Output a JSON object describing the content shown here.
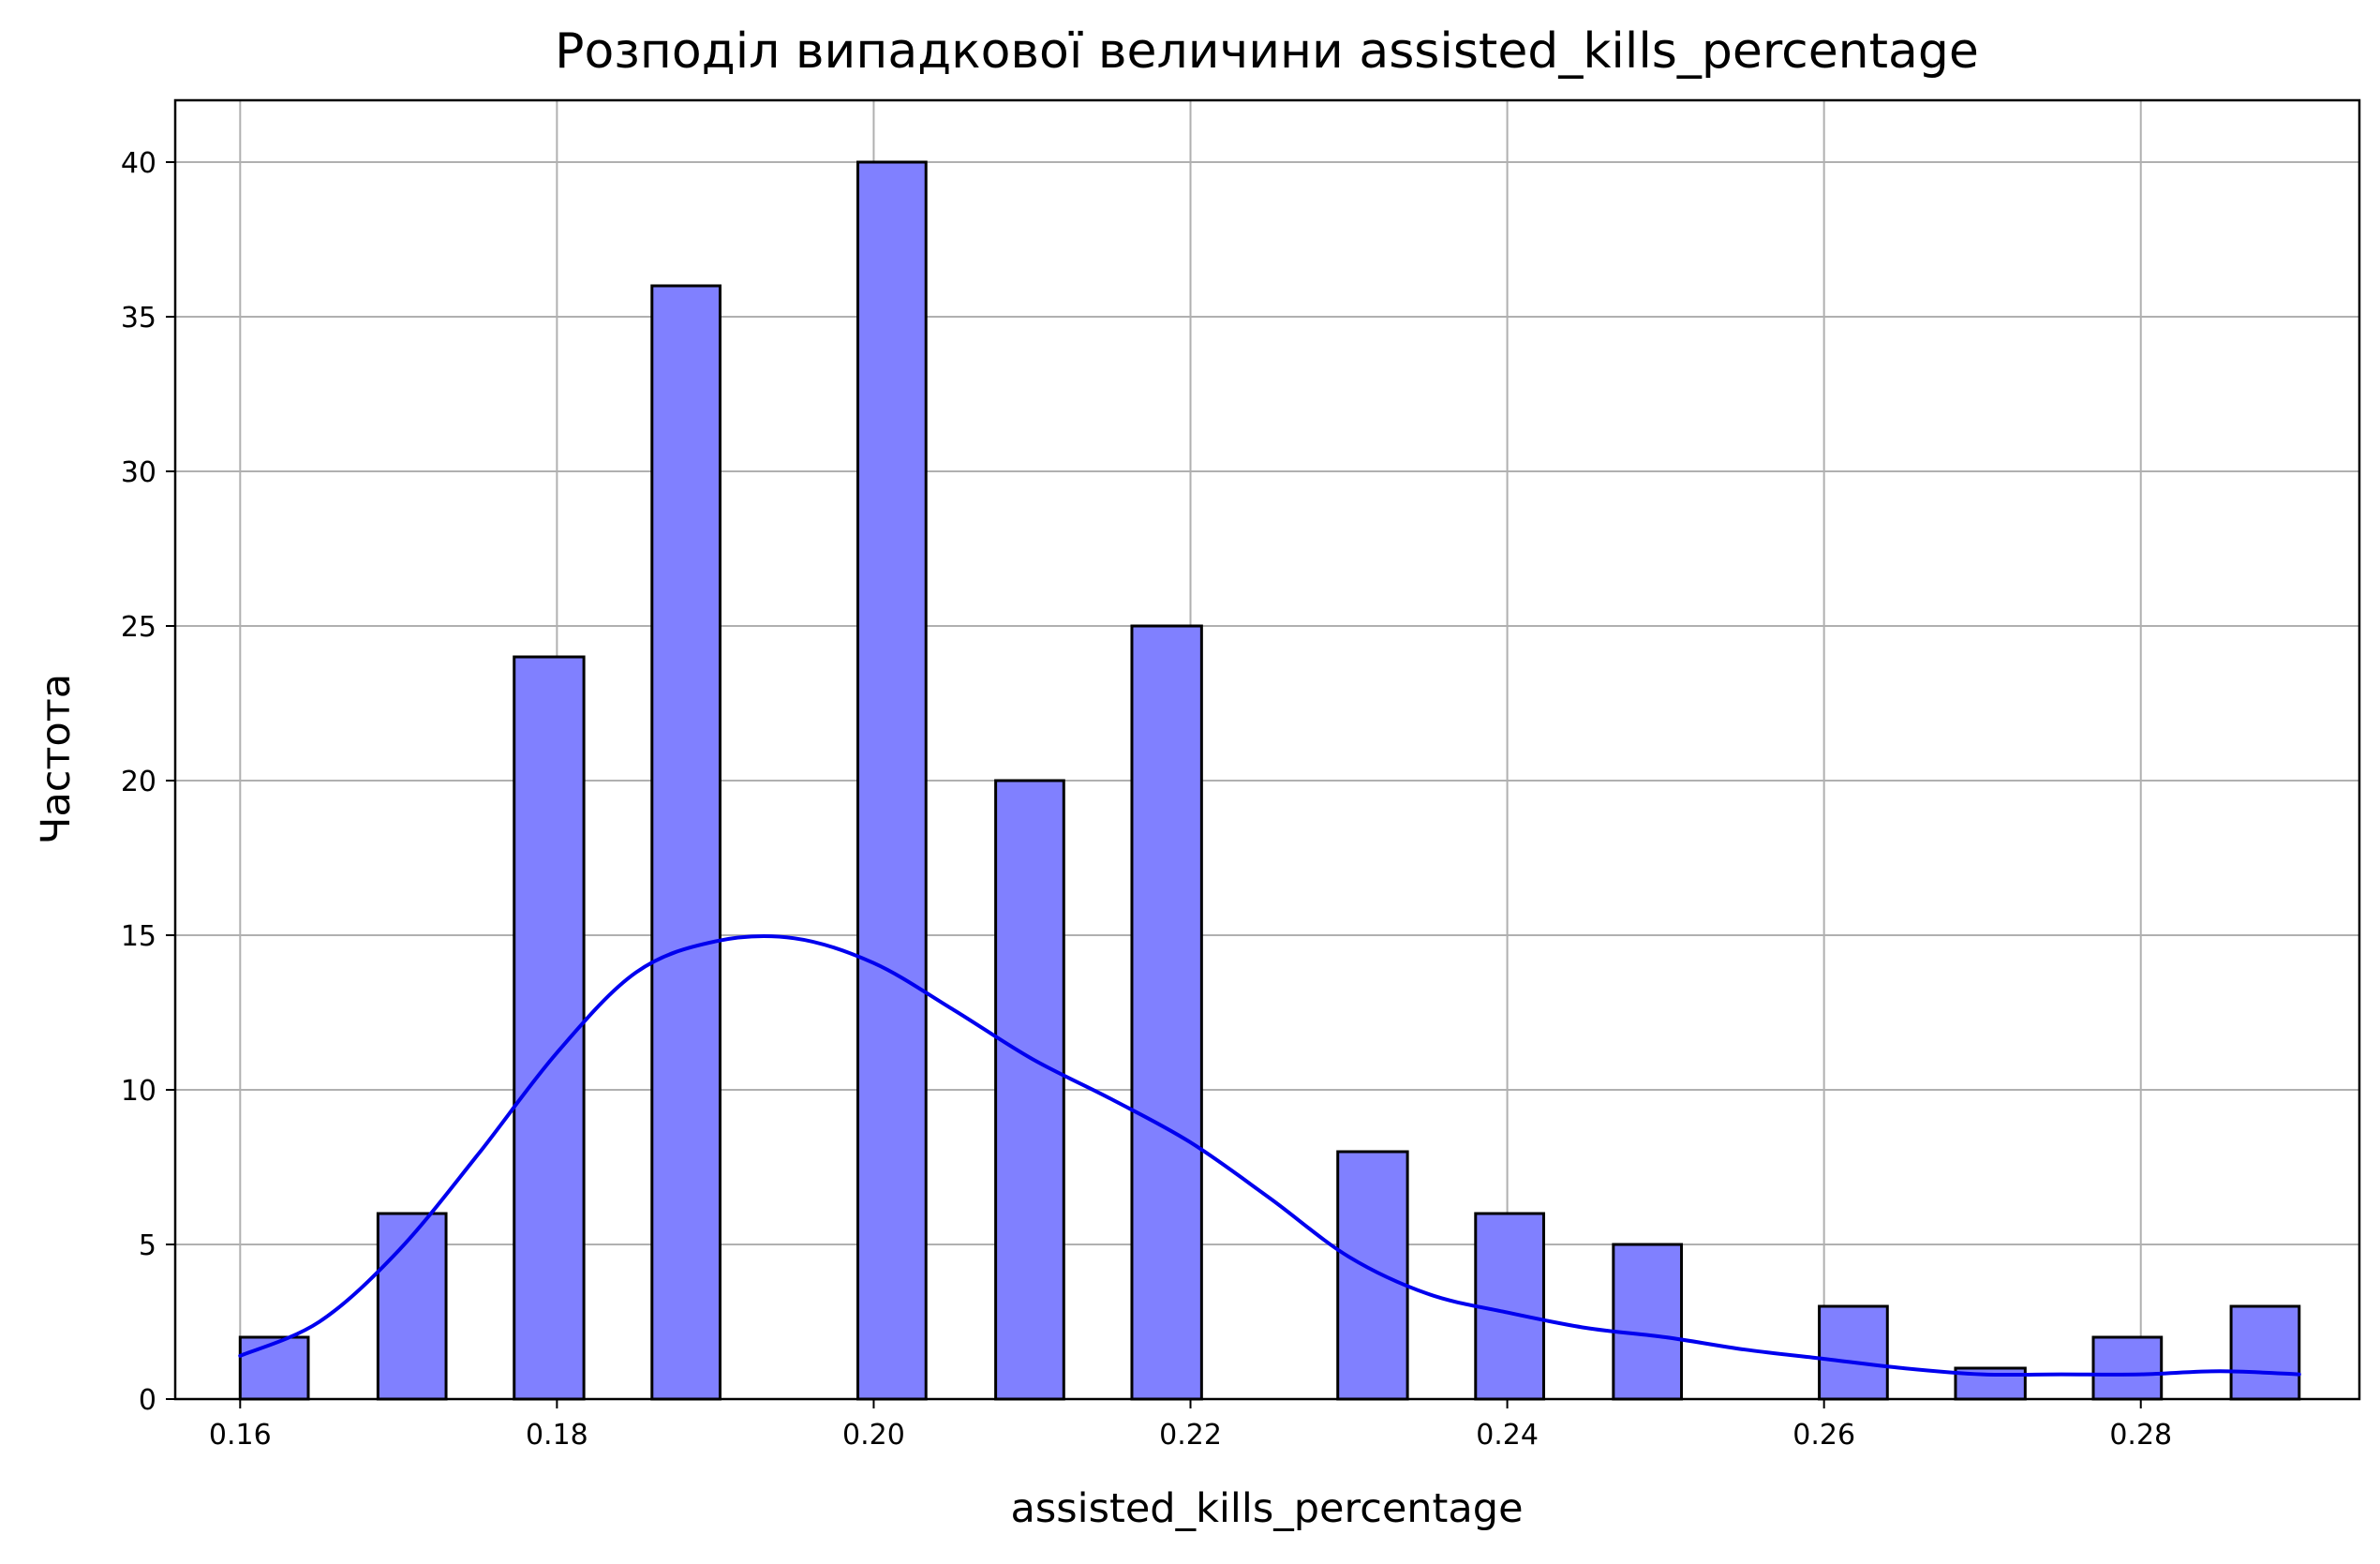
{
  "chart_data": {
    "type": "bar",
    "title": "Розподіл випадкової величини assisted_kills_percentage",
    "xlabel": "assisted_kills_percentage",
    "ylabel": "Частота",
    "xlim": [
      0.1559,
      0.2938
    ],
    "ylim": [
      0,
      42
    ],
    "grid": true,
    "xticks": [
      "0.16",
      "0.18",
      "0.20",
      "0.22",
      "0.24",
      "0.26",
      "0.28"
    ],
    "yticks": [
      "0",
      "5",
      "10",
      "15",
      "20",
      "25",
      "30",
      "35",
      "40"
    ],
    "bars": [
      {
        "x0": 0.16,
        "x1": 0.1643,
        "value": 2
      },
      {
        "x0": 0.1687,
        "x1": 0.173,
        "value": 6
      },
      {
        "x0": 0.1773,
        "x1": 0.1817,
        "value": 24
      },
      {
        "x0": 0.186,
        "x1": 0.1903,
        "value": 36
      },
      {
        "x0": 0.199,
        "x1": 0.2033,
        "value": 40
      },
      {
        "x0": 0.2077,
        "x1": 0.212,
        "value": 20
      },
      {
        "x0": 0.2163,
        "x1": 0.2207,
        "value": 25
      },
      {
        "x0": 0.2293,
        "x1": 0.2337,
        "value": 8
      },
      {
        "x0": 0.238,
        "x1": 0.2423,
        "value": 6
      },
      {
        "x0": 0.2467,
        "x1": 0.251,
        "value": 5
      },
      {
        "x0": 0.2597,
        "x1": 0.264,
        "value": 3
      },
      {
        "x0": 0.2683,
        "x1": 0.2727,
        "value": 1
      },
      {
        "x0": 0.277,
        "x1": 0.2813,
        "value": 2
      },
      {
        "x0": 0.2857,
        "x1": 0.29,
        "value": 3
      }
    ],
    "kde": {
      "x": [
        0.16,
        0.165,
        0.17,
        0.175,
        0.18,
        0.185,
        0.19,
        0.195,
        0.2,
        0.205,
        0.21,
        0.215,
        0.22,
        0.225,
        0.23,
        0.235,
        0.24,
        0.245,
        0.25,
        0.255,
        0.26,
        0.265,
        0.27,
        0.275,
        0.28,
        0.285,
        0.29
      ],
      "y": [
        1.4,
        2.5,
        4.8,
        7.9,
        11.2,
        13.8,
        14.8,
        14.9,
        14.1,
        12.6,
        11.0,
        9.7,
        8.3,
        6.5,
        4.6,
        3.4,
        2.8,
        2.3,
        2.0,
        1.6,
        1.3,
        1.0,
        0.8,
        0.8,
        0.8,
        0.9,
        0.8
      ]
    },
    "colors": {
      "bar_fill": "#8080ff",
      "bar_edge": "#000000",
      "kde_line": "#0000ee",
      "grid": "#b0b0b0",
      "axes": "#000000"
    }
  }
}
